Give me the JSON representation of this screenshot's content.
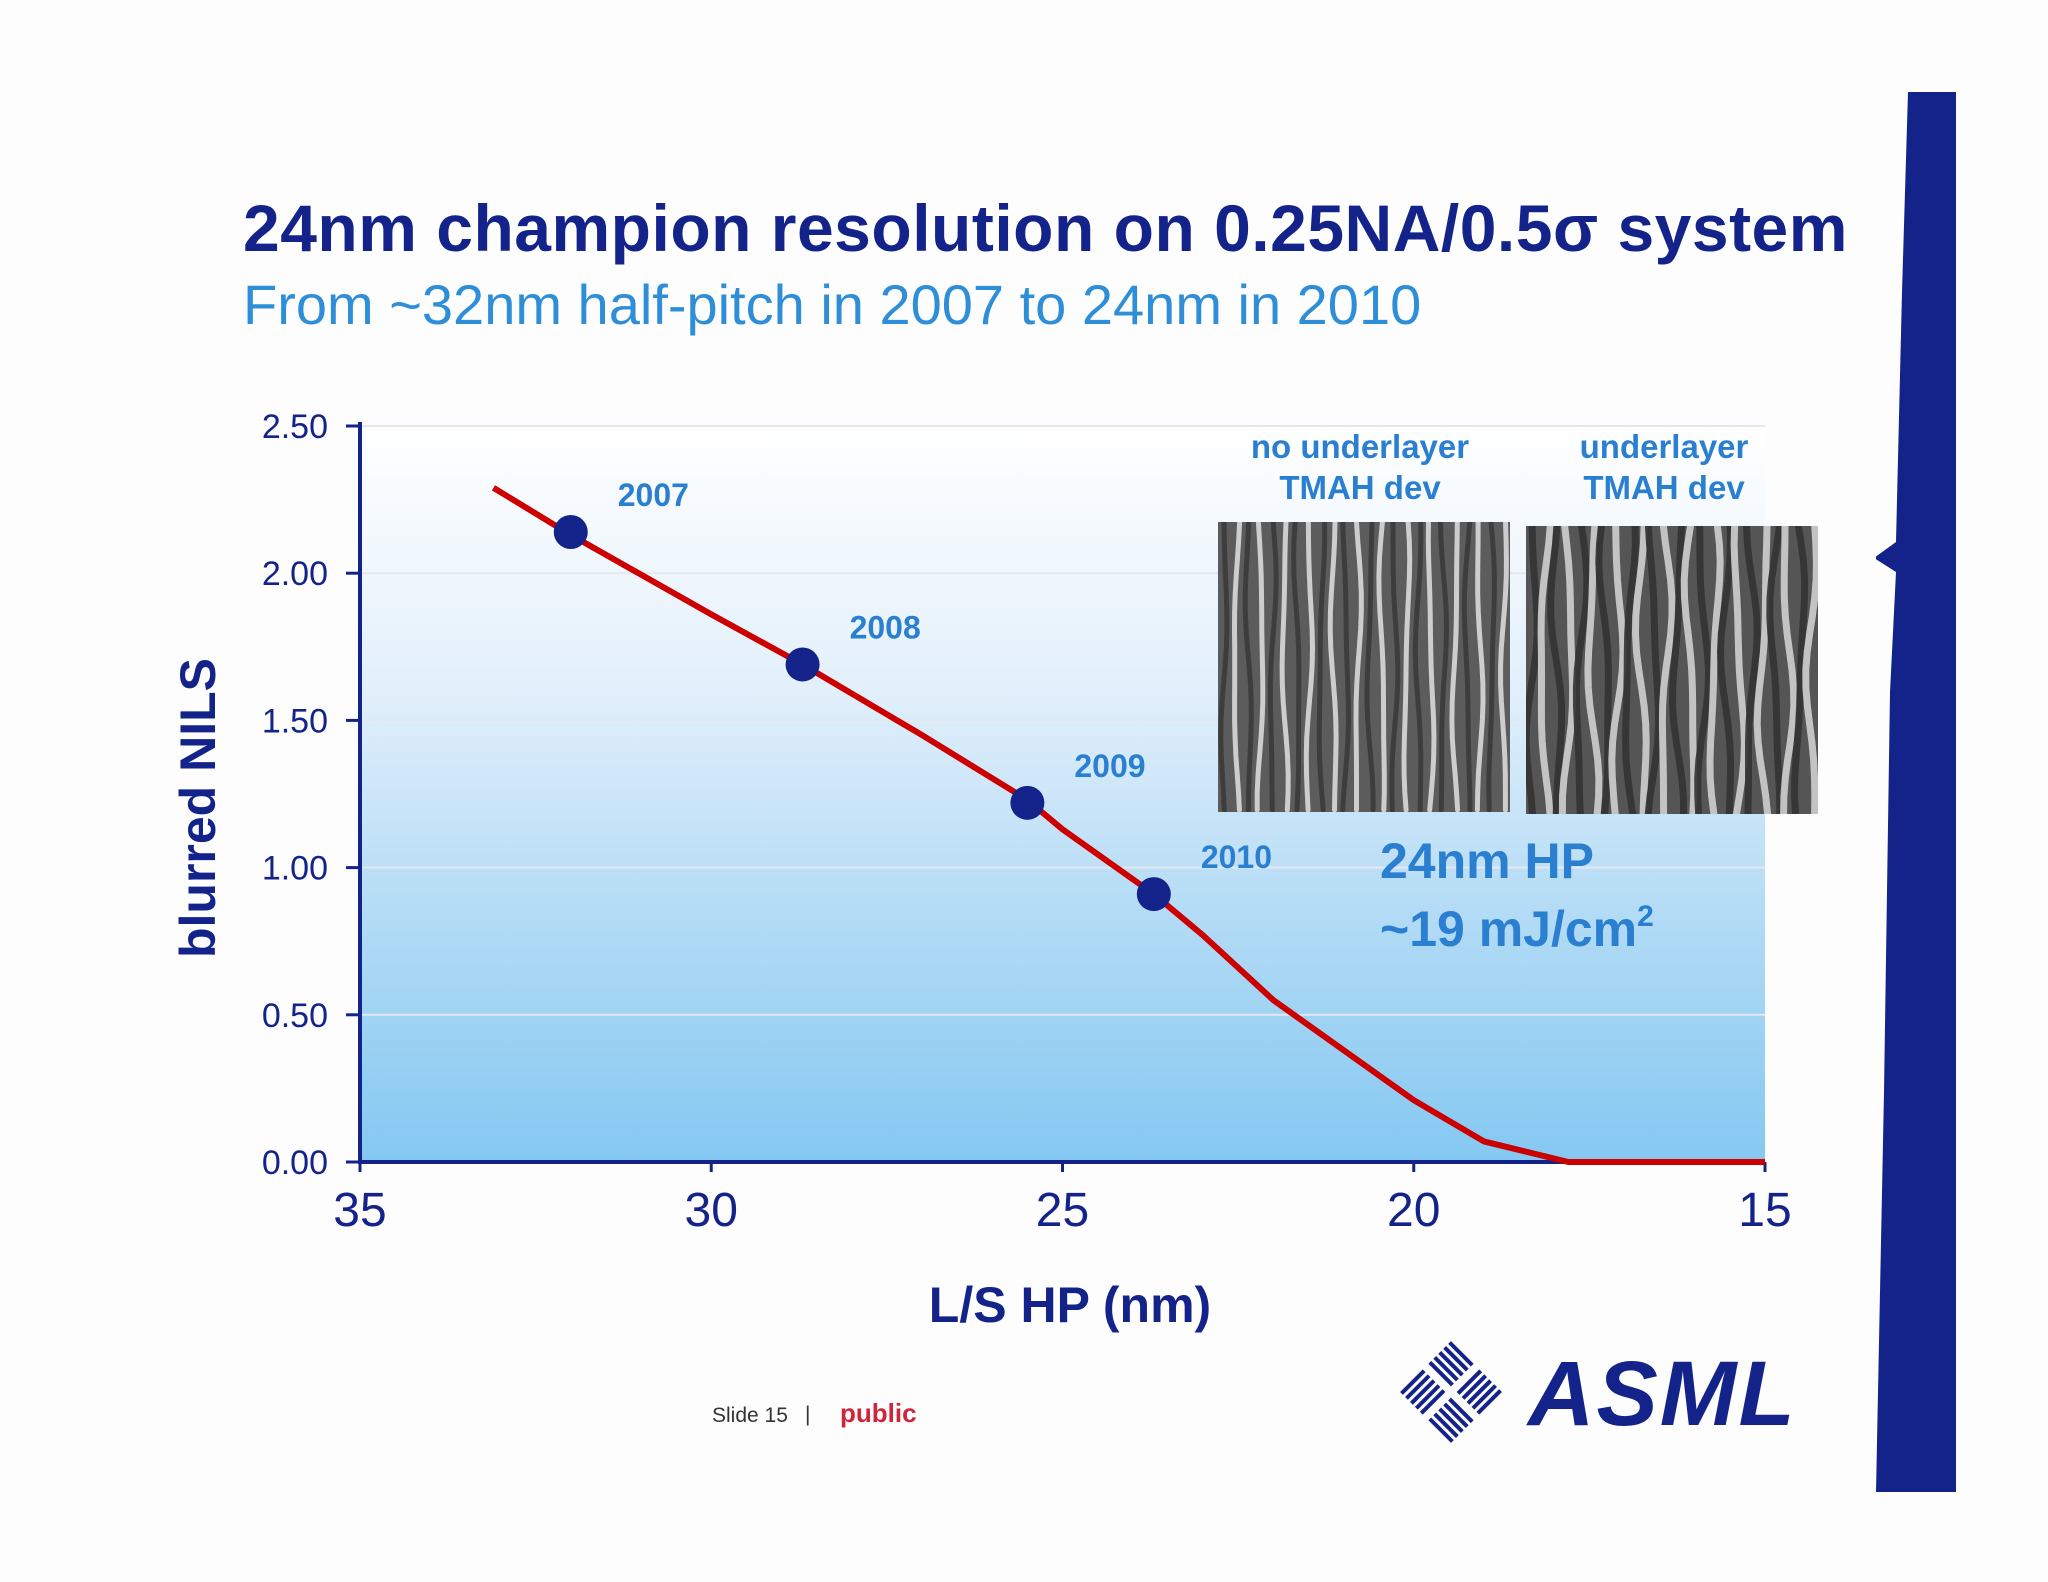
{
  "title": "24nm champion resolution on 0.25NA/0.5σ system",
  "subtitle": "From ~32nm half-pitch in 2007 to 24nm in 2010",
  "chart_data": {
    "type": "line",
    "xlabel": "L/S HP (nm)",
    "ylabel": "blurred NILS",
    "xlim": [
      35,
      15
    ],
    "ylim": [
      0,
      2.5
    ],
    "x_ticks": [
      "35",
      "30",
      "25",
      "20",
      "15"
    ],
    "y_ticks": [
      "0.00",
      "0.50",
      "1.00",
      "1.50",
      "2.00",
      "2.50"
    ],
    "grid": true,
    "curve": {
      "x": [
        33.1,
        32.0,
        30.0,
        28.7,
        27.0,
        25.5,
        25.0,
        23.7,
        23.0,
        22.0,
        20.0,
        19.0,
        17.8,
        15.0
      ],
      "y": [
        2.29,
        2.13,
        1.86,
        1.69,
        1.45,
        1.23,
        1.13,
        0.91,
        0.77,
        0.55,
        0.21,
        0.07,
        0.0,
        0.0
      ],
      "color": "#cc0000"
    },
    "points": [
      {
        "label": "2007",
        "x": 32.0,
        "y": 2.14
      },
      {
        "label": "2008",
        "x": 28.7,
        "y": 1.69
      },
      {
        "label": "2009",
        "x": 25.5,
        "y": 1.22
      },
      {
        "label": "2010",
        "x": 23.7,
        "y": 0.91
      }
    ],
    "point_color": "#13238a",
    "label_color": "#2b7fd0"
  },
  "images": [
    {
      "caption_line1": "no underlayer",
      "caption_line2": "TMAH dev"
    },
    {
      "caption_line1": "underlayer",
      "caption_line2": "TMAH dev"
    }
  ],
  "annotation": {
    "line1": "24nm HP",
    "line2_prefix": "~19 mJ/cm",
    "line2_sup": "2"
  },
  "footer": {
    "slide": "Slide 15",
    "separator": "|",
    "classification": "public"
  },
  "logo": {
    "text": "ASML"
  },
  "colors": {
    "title": "#13238a",
    "subtitle": "#2f8ed8",
    "accent_bar": "#13238a"
  }
}
